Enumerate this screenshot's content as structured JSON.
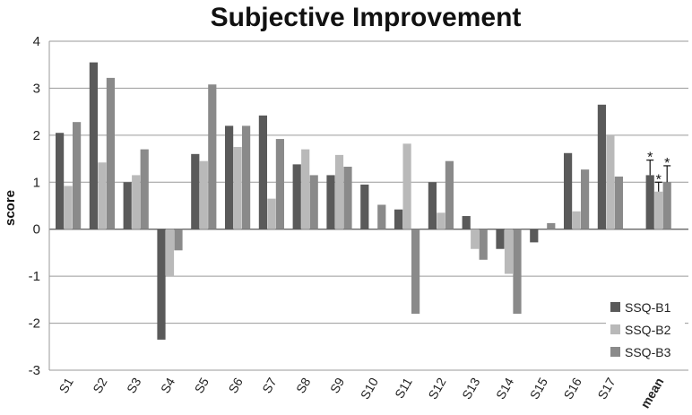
{
  "chart_data": {
    "type": "bar",
    "title": "Subjective Improvement",
    "xlabel": "",
    "ylabel": "score",
    "ylim": [
      -3,
      4
    ],
    "yticks": [
      4,
      3,
      2,
      1,
      0,
      -1,
      -2,
      -3
    ],
    "grid": true,
    "legend_position": "bottom-right",
    "categories": [
      "S1",
      "S2",
      "S3",
      "S4",
      "S5",
      "S6",
      "S7",
      "S8",
      "S9",
      "S10",
      "S11",
      "S12",
      "S13",
      "S14",
      "S15",
      "S16",
      "S17",
      "mean"
    ],
    "series": [
      {
        "name": "SSQ-B1",
        "color": "#5a5a5a",
        "values": [
          2.05,
          3.55,
          1.0,
          -2.35,
          1.6,
          2.2,
          2.42,
          1.38,
          1.15,
          0.95,
          0.42,
          1.0,
          0.28,
          -0.42,
          -0.28,
          1.62,
          2.65,
          1.15
        ]
      },
      {
        "name": "SSQ-B2",
        "color": "#b9b9b9",
        "values": [
          0.92,
          1.42,
          1.15,
          -1.0,
          1.45,
          1.75,
          0.65,
          1.7,
          1.58,
          0,
          1.82,
          0.35,
          -0.42,
          -0.95,
          0,
          0.38,
          2.0,
          0.8
        ]
      },
      {
        "name": "SSQ-B3",
        "color": "#8a8a8a",
        "values": [
          2.28,
          3.22,
          1.7,
          -0.45,
          3.08,
          2.2,
          1.92,
          1.15,
          1.33,
          0.52,
          -1.8,
          1.45,
          -0.65,
          -1.8,
          0.13,
          1.27,
          1.12,
          1.0
        ]
      }
    ],
    "error_bars": {
      "category": "mean",
      "upper": [
        0.32,
        0.2,
        0.35
      ]
    },
    "annotations": {
      "significance_marker": "*"
    }
  }
}
